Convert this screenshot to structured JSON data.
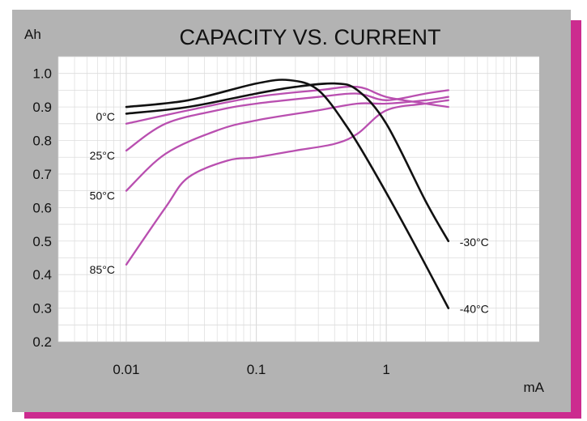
{
  "colors": {
    "frame_gray": "#b3b3b3",
    "shadow_magenta": "#cc2b8f",
    "plot_bg": "#ffffff",
    "grid": "#dcdcdc"
  },
  "chart_data": {
    "type": "line",
    "title": "CAPACITY VS. CURRENT",
    "ylabel": "Ah",
    "xlabel": "mA",
    "x_scale": "log",
    "xlim": [
      0.003,
      15
    ],
    "ylim": [
      0.2,
      1.05
    ],
    "xticks": [
      {
        "value": 0.01,
        "label": "0.01"
      },
      {
        "value": 0.1,
        "label": "0.1"
      },
      {
        "value": 1,
        "label": "1"
      }
    ],
    "yticks": [
      {
        "value": 0.2,
        "label": "0.2"
      },
      {
        "value": 0.3,
        "label": "0.3"
      },
      {
        "value": 0.4,
        "label": "0.4"
      },
      {
        "value": 0.5,
        "label": "0.5"
      },
      {
        "value": 0.6,
        "label": "0.6"
      },
      {
        "value": 0.7,
        "label": "0.7"
      },
      {
        "value": 0.8,
        "label": "0.8"
      },
      {
        "value": 0.9,
        "label": "0.9"
      },
      {
        "value": 1.0,
        "label": "1.0"
      }
    ],
    "grid": true,
    "series": [
      {
        "name": "-30°C",
        "color": "#111111",
        "label_side": "right",
        "x": [
          0.01,
          0.03,
          0.1,
          0.2,
          0.4,
          0.6,
          1,
          2,
          3
        ],
        "y": [
          0.88,
          0.9,
          0.94,
          0.96,
          0.97,
          0.95,
          0.85,
          0.62,
          0.5
        ]
      },
      {
        "name": "-40°C",
        "color": "#111111",
        "label_side": "right",
        "x": [
          0.01,
          0.03,
          0.1,
          0.18,
          0.3,
          0.5,
          0.8,
          1.5,
          3
        ],
        "y": [
          0.9,
          0.92,
          0.97,
          0.98,
          0.95,
          0.84,
          0.71,
          0.52,
          0.3
        ]
      },
      {
        "name": "0°C",
        "color": "#b94fb0",
        "label_side": "left",
        "x": [
          0.01,
          0.03,
          0.1,
          0.3,
          0.6,
          1,
          2,
          3
        ],
        "y": [
          0.85,
          0.89,
          0.93,
          0.95,
          0.96,
          0.93,
          0.91,
          0.9
        ]
      },
      {
        "name": "25°C",
        "color": "#b94fb0",
        "label_side": "left",
        "x": [
          0.01,
          0.02,
          0.05,
          0.1,
          0.3,
          0.6,
          1,
          2,
          3
        ],
        "y": [
          0.77,
          0.85,
          0.89,
          0.91,
          0.93,
          0.94,
          0.92,
          0.94,
          0.95
        ]
      },
      {
        "name": "50°C",
        "color": "#b94fb0",
        "label_side": "left",
        "x": [
          0.01,
          0.02,
          0.05,
          0.1,
          0.3,
          0.6,
          1,
          2,
          3
        ],
        "y": [
          0.65,
          0.76,
          0.83,
          0.86,
          0.89,
          0.91,
          0.91,
          0.92,
          0.93
        ]
      },
      {
        "name": "85°C",
        "color": "#b94fb0",
        "label_side": "left",
        "x": [
          0.01,
          0.02,
          0.03,
          0.06,
          0.1,
          0.2,
          0.4,
          0.6,
          1,
          2,
          3
        ],
        "y": [
          0.43,
          0.6,
          0.69,
          0.74,
          0.75,
          0.77,
          0.79,
          0.82,
          0.89,
          0.91,
          0.92
        ]
      }
    ]
  }
}
